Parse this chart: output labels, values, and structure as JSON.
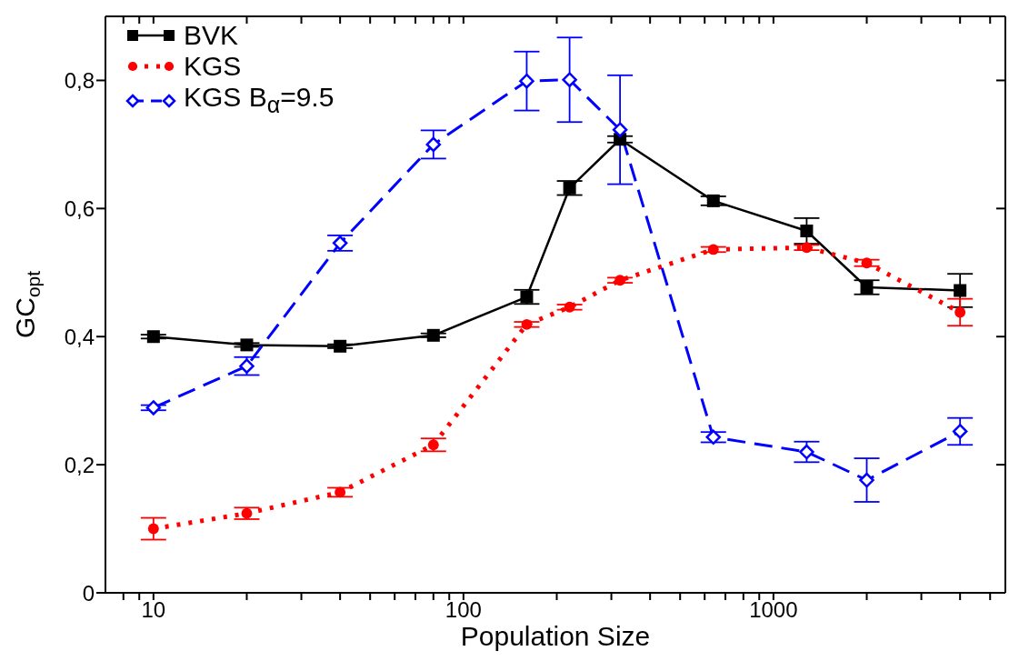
{
  "chart_data": {
    "type": "line",
    "xlabel": "Population Size",
    "ylabel": "GC$_{opt}$",
    "log": "x",
    "xlim": [
      7,
      5600
    ],
    "xticks": [
      {
        "value": 8,
        "label": null
      },
      {
        "value": 9,
        "label": null
      },
      10,
      {
        "value": 20,
        "label": null
      },
      {
        "value": 30,
        "label": null
      },
      {
        "value": 40,
        "label": null
      },
      {
        "value": 50,
        "label": null
      },
      {
        "value": 60,
        "label": null
      },
      {
        "value": 70,
        "label": null
      },
      {
        "value": 80,
        "label": null
      },
      {
        "value": 90,
        "label": null
      },
      100,
      {
        "value": 200,
        "label": null
      },
      {
        "value": 300,
        "label": null
      },
      {
        "value": 400,
        "label": null
      },
      {
        "value": 500,
        "label": null
      },
      {
        "value": 600,
        "label": null
      },
      {
        "value": 700,
        "label": null
      },
      {
        "value": 800,
        "label": null
      },
      {
        "value": 900,
        "label": null
      },
      1000,
      {
        "value": 2000,
        "label": null
      },
      {
        "value": 3000,
        "label": null
      },
      {
        "value": 4000,
        "label": null
      },
      {
        "value": 5000,
        "label": null
      }
    ],
    "ylim": [
      0,
      0.9
    ],
    "yticks": [
      {
        "value": 0,
        "label": "0"
      },
      {
        "value": 0.2,
        "label": "0,2"
      },
      {
        "value": 0.4,
        "label": "0,4"
      },
      {
        "value": 0.6,
        "label": "0,6"
      },
      {
        "value": 0.8,
        "label": "0,8"
      }
    ],
    "x": [
      10,
      20,
      40,
      80,
      160,
      220,
      320,
      640,
      1280,
      2000,
      4000
    ],
    "legend": "top left",
    "grid": false,
    "series": [
      {
        "name": "BVK",
        "color": "#000000",
        "marker": "square",
        "line_style": "solid",
        "values": [
          0.4,
          0.387,
          0.385,
          0.402,
          0.462,
          0.632,
          0.708,
          0.612,
          0.565,
          0.477,
          0.472
        ],
        "errors": [
          0.003,
          0.003,
          0.003,
          0.003,
          0.011,
          0.011,
          0.005,
          0.007,
          0.02,
          0.011,
          0.026
        ]
      },
      {
        "name": "KGS",
        "color": "#ff0000",
        "marker": "circle",
        "line_style": "dotted",
        "values": [
          0.1,
          0.124,
          0.157,
          0.231,
          0.419,
          0.446,
          0.488,
          0.536,
          0.539,
          0.515,
          0.438
        ],
        "errors": [
          0.017,
          0.009,
          0.007,
          0.01,
          0.004,
          0.004,
          0.004,
          0.004,
          0.004,
          0.005,
          0.021
        ]
      },
      {
        "name": "KGS B$_{α}$=9.5",
        "color": "#0000ff",
        "marker": "diamond",
        "line_style": "dashed",
        "values": [
          0.289,
          0.354,
          0.546,
          0.7,
          0.799,
          0.801,
          0.723,
          0.243,
          0.22,
          0.176,
          0.252
        ],
        "errors": [
          0.004,
          0.014,
          0.012,
          0.022,
          0.046,
          0.066,
          0.085,
          0.008,
          0.016,
          0.034,
          0.021
        ]
      }
    ]
  }
}
